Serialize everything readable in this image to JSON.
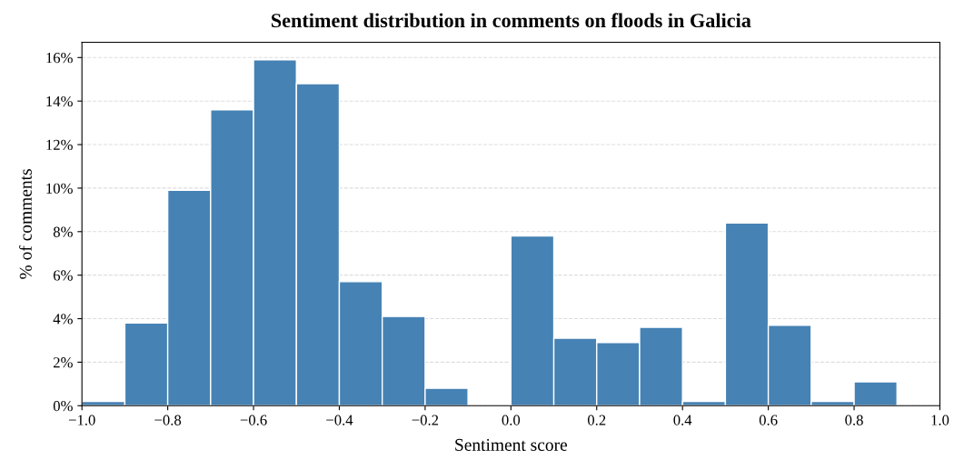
{
  "chart_data": {
    "type": "histogram",
    "title": "Sentiment distribution in comments on floods in Galicia",
    "xlabel": "Sentiment score",
    "ylabel": "% of comments",
    "bins": [
      -1.0,
      -0.9,
      -0.8,
      -0.7,
      -0.6,
      -0.5,
      -0.4,
      -0.3,
      -0.2,
      -0.1,
      0.0,
      0.1,
      0.2,
      0.3,
      0.4,
      0.5,
      0.6,
      0.7,
      0.8,
      0.9,
      1.0
    ],
    "values": [
      0.2,
      3.8,
      9.9,
      13.6,
      15.9,
      14.8,
      5.7,
      4.1,
      0.8,
      0,
      7.8,
      3.1,
      2.9,
      3.6,
      0.2,
      8.4,
      3.7,
      0.2,
      1.1,
      0
    ],
    "color": "#4682b4",
    "xlim": [
      -1.0,
      1.0
    ],
    "xticks": [
      {
        "value": -1.0,
        "label": "−1.0"
      },
      {
        "value": -0.8,
        "label": "−0.8"
      },
      {
        "value": -0.6,
        "label": "−0.6"
      },
      {
        "value": -0.4,
        "label": "−0.4"
      },
      {
        "value": -0.2,
        "label": "−0.2"
      },
      {
        "value": 0.0,
        "label": "0.0"
      },
      {
        "value": 0.2,
        "label": "0.2"
      },
      {
        "value": 0.4,
        "label": "0.4"
      },
      {
        "value": 0.6,
        "label": "0.6"
      },
      {
        "value": 0.8,
        "label": "0.8"
      },
      {
        "value": 1.0,
        "label": "1.0"
      }
    ],
    "ylim": [
      0,
      16.7
    ],
    "yticks": [
      {
        "value": 0,
        "label": "0%"
      },
      {
        "value": 2,
        "label": "2%"
      },
      {
        "value": 4,
        "label": "4%"
      },
      {
        "value": 6,
        "label": "6%"
      },
      {
        "value": 8,
        "label": "8%"
      },
      {
        "value": 10,
        "label": "10%"
      },
      {
        "value": 12,
        "label": "12%"
      },
      {
        "value": 14,
        "label": "14%"
      },
      {
        "value": 16,
        "label": "16%"
      }
    ],
    "grid": "y",
    "line_style": "dashed"
  }
}
